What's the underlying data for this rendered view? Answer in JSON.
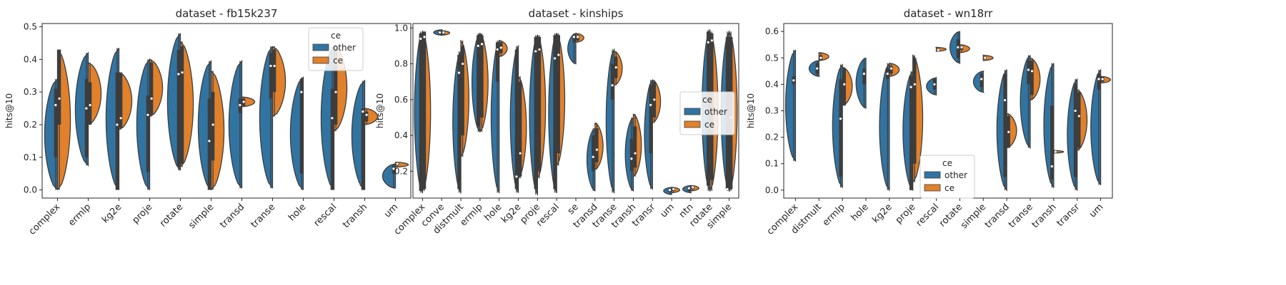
{
  "chart_data": [
    {
      "type": "violin",
      "title": "dataset - fb15k237",
      "xlabel": "",
      "ylabel": "hits@10",
      "ylim": [
        -0.025,
        0.51
      ],
      "yticks": [
        0.0,
        0.1,
        0.2,
        0.3,
        0.4,
        0.5
      ],
      "ytick_labels": [
        "0.0",
        "0.1",
        "0.2",
        "0.3",
        "0.4",
        "0.5"
      ],
      "legend": {
        "title": "ce",
        "entries": [
          "other",
          "ce"
        ],
        "placement": "top-right"
      },
      "categories": [
        {
          "label": "complex",
          "other": {
            "min": 0.0,
            "max": 0.34,
            "q1": 0.1,
            "median": 0.26,
            "q3": 0.31
          },
          "ce": {
            "min": 0.0,
            "max": 0.43,
            "q1": 0.2,
            "median": 0.28,
            "q3": 0.43
          }
        },
        {
          "label": "ermlp",
          "other": {
            "min": 0.075,
            "max": 0.42,
            "q1": 0.1,
            "median": 0.25,
            "q3": 0.34
          },
          "ce": {
            "min": 0.2,
            "max": 0.39,
            "q1": 0.2,
            "median": 0.26,
            "q3": 0.33
          }
        },
        {
          "label": "kg2e",
          "other": {
            "min": 0.0,
            "max": 0.435,
            "q1": 0.0,
            "median": 0.2,
            "q3": 0.36
          },
          "ce": {
            "min": 0.185,
            "max": 0.36,
            "q1": 0.19,
            "median": 0.22,
            "q3": 0.36
          }
        },
        {
          "label": "proje",
          "other": {
            "min": 0.0,
            "max": 0.4,
            "q1": 0.055,
            "median": 0.23,
            "q3": 0.29
          },
          "ce": {
            "min": 0.225,
            "max": 0.4,
            "q1": 0.23,
            "median": 0.28,
            "q3": 0.39
          }
        },
        {
          "label": "rotate",
          "other": {
            "min": 0.06,
            "max": 0.48,
            "q1": 0.07,
            "median": 0.355,
            "q3": 0.43
          },
          "ce": {
            "min": 0.07,
            "max": 0.455,
            "q1": 0.08,
            "median": 0.36,
            "q3": 0.44
          }
        },
        {
          "label": "simple",
          "other": {
            "min": 0.0,
            "max": 0.395,
            "q1": 0.0,
            "median": 0.15,
            "q3": 0.28
          },
          "ce": {
            "min": 0.0,
            "max": 0.365,
            "q1": 0.09,
            "median": 0.2,
            "q3": 0.3
          }
        },
        {
          "label": "transd",
          "other": {
            "min": 0.005,
            "max": 0.395,
            "q1": 0.235,
            "median": 0.26,
            "q3": 0.28
          },
          "ce": {
            "min": 0.255,
            "max": 0.285,
            "q1": 0.258,
            "median": 0.27,
            "q3": 0.28
          }
        },
        {
          "label": "transe",
          "other": {
            "min": 0.005,
            "max": 0.44,
            "q1": 0.28,
            "median": 0.38,
            "q3": 0.42
          },
          "ce": {
            "min": 0.225,
            "max": 0.44,
            "q1": 0.3,
            "median": 0.38,
            "q3": 0.43
          }
        },
        {
          "label": "hole",
          "other": {
            "min": 0.0,
            "max": 0.345,
            "q1": 0.05,
            "median": 0.3,
            "q3": 0.34
          },
          "ce": null
        },
        {
          "label": "rescal",
          "other": {
            "min": 0.0,
            "max": 0.44,
            "q1": 0.0,
            "median": 0.22,
            "q3": 0.31
          },
          "ce": {
            "min": 0.18,
            "max": 0.445,
            "q1": 0.2,
            "median": 0.3,
            "q3": 0.44
          }
        },
        {
          "label": "transh",
          "other": {
            "min": 0.0,
            "max": 0.335,
            "q1": 0.0,
            "median": 0.24,
            "q3": 0.25
          },
          "ce": {
            "min": 0.2,
            "max": 0.25,
            "q1": 0.21,
            "median": 0.23,
            "q3": 0.24
          }
        },
        {
          "label": "um",
          "other": {
            "min": 0.005,
            "max": 0.08,
            "q1": 0.05,
            "median": 0.065,
            "q3": 0.075
          },
          "ce": {
            "min": 0.07,
            "max": 0.085,
            "q1": 0.075,
            "median": 0.08,
            "q3": 0.083
          }
        }
      ]
    },
    {
      "type": "violin",
      "title": "dataset - kinships",
      "xlabel": "",
      "ylabel": "hits@10",
      "ylim": [
        0.05,
        1.025
      ],
      "yticks": [
        0.2,
        0.4,
        0.6,
        0.8,
        1.0
      ],
      "ytick_labels": [
        "0.2",
        "0.4",
        "0.6",
        "0.8",
        "1.0"
      ],
      "legend": {
        "title": "ce",
        "entries": [
          "other",
          "ce"
        ],
        "placement": "center-right"
      },
      "categories": [
        {
          "label": "complex",
          "other": {
            "min": 0.08,
            "max": 0.98,
            "q1": 0.09,
            "median": 0.94,
            "q3": 0.97
          },
          "ce": {
            "min": 0.09,
            "max": 0.98,
            "q1": 0.1,
            "median": 0.95,
            "q3": 0.98
          }
        },
        {
          "label": "conve",
          "other": {
            "min": 0.96,
            "max": 0.99,
            "q1": 0.965,
            "median": 0.975,
            "q3": 0.985
          },
          "ce": {
            "min": 0.96,
            "max": 0.985,
            "q1": 0.965,
            "median": 0.975,
            "q3": 0.98
          }
        },
        {
          "label": "distmult",
          "other": {
            "min": 0.08,
            "max": 0.87,
            "q1": 0.1,
            "median": 0.75,
            "q3": 0.85
          },
          "ce": {
            "min": 0.28,
            "max": 0.93,
            "q1": 0.4,
            "median": 0.8,
            "q3": 0.9
          }
        },
        {
          "label": "ermlp",
          "other": {
            "min": 0.42,
            "max": 0.97,
            "q1": 0.45,
            "median": 0.9,
            "q3": 0.96
          },
          "ce": {
            "min": 0.42,
            "max": 0.97,
            "q1": 0.5,
            "median": 0.91,
            "q3": 0.96
          }
        },
        {
          "label": "hole",
          "other": {
            "min": 0.08,
            "max": 0.93,
            "q1": 0.7,
            "median": 0.88,
            "q3": 0.92
          },
          "ce": {
            "min": 0.84,
            "max": 0.93,
            "q1": 0.86,
            "median": 0.89,
            "q3": 0.92
          }
        },
        {
          "label": "kg2e",
          "other": {
            "min": 0.08,
            "max": 0.9,
            "q1": 0.1,
            "median": 0.17,
            "q3": 0.88
          },
          "ce": {
            "min": 0.16,
            "max": 0.73,
            "q1": 0.17,
            "median": 0.3,
            "q3": 0.7
          }
        },
        {
          "label": "proje",
          "other": {
            "min": 0.07,
            "max": 0.96,
            "q1": 0.1,
            "median": 0.87,
            "q3": 0.95
          },
          "ce": {
            "min": 0.16,
            "max": 0.96,
            "q1": 0.2,
            "median": 0.88,
            "q3": 0.95
          }
        },
        {
          "label": "rescal",
          "other": {
            "min": 0.08,
            "max": 0.97,
            "q1": 0.1,
            "median": 0.83,
            "q3": 0.96
          },
          "ce": {
            "min": 0.23,
            "max": 0.97,
            "q1": 0.3,
            "median": 0.85,
            "q3": 0.96
          }
        },
        {
          "label": "se",
          "other": {
            "min": 0.8,
            "max": 0.97,
            "q1": 0.92,
            "median": 0.95,
            "q3": 0.96
          },
          "ce": {
            "min": 0.92,
            "max": 0.97,
            "q1": 0.93,
            "median": 0.95,
            "q3": 0.96
          }
        },
        {
          "label": "transd",
          "other": {
            "min": 0.09,
            "max": 0.44,
            "q1": 0.2,
            "median": 0.28,
            "q3": 0.4
          },
          "ce": {
            "min": 0.21,
            "max": 0.47,
            "q1": 0.25,
            "median": 0.32,
            "q3": 0.44
          }
        },
        {
          "label": "transe",
          "other": {
            "min": 0.08,
            "max": 0.88,
            "q1": 0.6,
            "median": 0.68,
            "q3": 0.8
          },
          "ce": {
            "min": 0.68,
            "max": 0.87,
            "q1": 0.72,
            "median": 0.78,
            "q3": 0.84
          }
        },
        {
          "label": "transh",
          "other": {
            "min": 0.09,
            "max": 0.5,
            "q1": 0.2,
            "median": 0.27,
            "q3": 0.38
          },
          "ce": {
            "min": 0.17,
            "max": 0.52,
            "q1": 0.22,
            "median": 0.3,
            "q3": 0.45
          }
        },
        {
          "label": "transr",
          "other": {
            "min": 0.1,
            "max": 0.71,
            "q1": 0.3,
            "median": 0.57,
            "q3": 0.68
          },
          "ce": {
            "min": 0.47,
            "max": 0.71,
            "q1": 0.5,
            "median": 0.6,
            "q3": 0.7
          }
        },
        {
          "label": "um",
          "other": {
            "min": 0.07,
            "max": 0.11,
            "q1": 0.085,
            "median": 0.095,
            "q3": 0.1
          },
          "ce": {
            "min": 0.08,
            "max": 0.11,
            "q1": 0.09,
            "median": 0.1,
            "q3": 0.105
          }
        },
        {
          "label": "ntn",
          "other": {
            "min": 0.08,
            "max": 0.12,
            "q1": 0.09,
            "median": 0.105,
            "q3": 0.11
          },
          "ce": {
            "min": 0.09,
            "max": 0.12,
            "q1": 0.1,
            "median": 0.11,
            "q3": 0.115
          }
        },
        {
          "label": "rotate",
          "other": {
            "min": 0.09,
            "max": 0.99,
            "q1": 0.12,
            "median": 0.92,
            "q3": 0.98
          },
          "ce": {
            "min": 0.09,
            "max": 0.98,
            "q1": 0.15,
            "median": 0.93,
            "q3": 0.97
          }
        },
        {
          "label": "simple",
          "other": {
            "min": 0.09,
            "max": 0.98,
            "q1": 0.1,
            "median": 0.1,
            "q3": 0.95
          },
          "ce": {
            "min": 0.09,
            "max": 0.98,
            "q1": 0.1,
            "median": 0.5,
            "q3": 0.95
          }
        }
      ]
    },
    {
      "type": "violin",
      "title": "dataset - wn18rr",
      "xlabel": "",
      "ylabel": "hits@10",
      "ylim": [
        -0.03,
        0.63
      ],
      "yticks": [
        0.0,
        0.1,
        0.2,
        0.3,
        0.4,
        0.5,
        0.6
      ],
      "ytick_labels": [
        "0.0",
        "0.1",
        "0.2",
        "0.3",
        "0.4",
        "0.5",
        "0.6"
      ],
      "legend": {
        "title": "ce",
        "entries": [
          "other",
          "ce"
        ],
        "placement": "bottom-center"
      },
      "categories": [
        {
          "label": "complex",
          "other": {
            "min": 0.11,
            "max": 0.53,
            "q1": 0.4,
            "median": 0.415,
            "q3": 0.43
          },
          "ce": null
        },
        {
          "label": "distmult",
          "other": {
            "min": 0.43,
            "max": 0.49,
            "q1": 0.44,
            "median": 0.46,
            "q3": 0.48
          },
          "ce": {
            "min": 0.49,
            "max": 0.52,
            "q1": 0.49,
            "median": 0.5,
            "q3": 0.51
          }
        },
        {
          "label": "ermlp",
          "other": {
            "min": 0.01,
            "max": 0.475,
            "q1": 0.05,
            "median": 0.27,
            "q3": 0.42
          },
          "ce": {
            "min": 0.32,
            "max": 0.465,
            "q1": 0.32,
            "median": 0.4,
            "q3": 0.46
          }
        },
        {
          "label": "hole",
          "other": {
            "min": 0.31,
            "max": 0.5,
            "q1": 0.4,
            "median": 0.44,
            "q3": 0.46
          },
          "ce": null
        },
        {
          "label": "kg2e",
          "other": {
            "min": 0.0,
            "max": 0.48,
            "q1": 0.42,
            "median": 0.44,
            "q3": 0.46
          },
          "ce": {
            "min": 0.43,
            "max": 0.48,
            "q1": 0.44,
            "median": 0.46,
            "q3": 0.47
          }
        },
        {
          "label": "proje",
          "other": {
            "min": 0.0,
            "max": 0.45,
            "q1": 0.0,
            "median": 0.39,
            "q3": 0.43
          },
          "ce": {
            "min": 0.03,
            "max": 0.51,
            "q1": 0.1,
            "median": 0.4,
            "q3": 0.5
          }
        },
        {
          "label": "rescal",
          "other": {
            "min": 0.36,
            "max": 0.425,
            "q1": 0.38,
            "median": 0.4,
            "q3": 0.42
          },
          "ce": {
            "min": 0.525,
            "max": 0.54,
            "q1": 0.53,
            "median": 0.53,
            "q3": 0.535
          }
        },
        {
          "label": "rotate",
          "other": {
            "min": 0.48,
            "max": 0.6,
            "q1": 0.5,
            "median": 0.54,
            "q3": 0.57
          },
          "ce": {
            "min": 0.52,
            "max": 0.55,
            "q1": 0.53,
            "median": 0.54,
            "q3": 0.545
          }
        },
        {
          "label": "simple",
          "other": {
            "min": 0.37,
            "max": 0.45,
            "q1": 0.39,
            "median": 0.42,
            "q3": 0.44
          },
          "ce": {
            "min": 0.49,
            "max": 0.51,
            "q1": 0.495,
            "median": 0.5,
            "q3": 0.505
          }
        },
        {
          "label": "transd",
          "other": {
            "min": 0.0,
            "max": 0.455,
            "q1": 0.05,
            "median": 0.34,
            "q3": 0.44
          },
          "ce": {
            "min": 0.16,
            "max": 0.29,
            "q1": 0.16,
            "median": 0.22,
            "q3": 0.28
          }
        },
        {
          "label": "transe",
          "other": {
            "min": 0.16,
            "max": 0.51,
            "q1": 0.4,
            "median": 0.455,
            "q3": 0.49
          },
          "ce": {
            "min": 0.34,
            "max": 0.5,
            "q1": 0.36,
            "median": 0.45,
            "q3": 0.49
          }
        },
        {
          "label": "transh",
          "other": {
            "min": 0.01,
            "max": 0.48,
            "q1": 0.04,
            "median": 0.09,
            "q3": 0.32
          },
          "ce": {
            "min": 0.14,
            "max": 0.15,
            "q1": 0.142,
            "median": 0.145,
            "q3": 0.148
          }
        },
        {
          "label": "transr",
          "other": {
            "min": 0.0,
            "max": 0.42,
            "q1": 0.05,
            "median": 0.3,
            "q3": 0.4
          },
          "ce": {
            "min": 0.15,
            "max": 0.38,
            "q1": 0.16,
            "median": 0.28,
            "q3": 0.37
          }
        },
        {
          "label": "um",
          "other": {
            "min": 0.02,
            "max": 0.455,
            "q1": 0.38,
            "median": 0.42,
            "q3": 0.44
          },
          "ce": {
            "min": 0.405,
            "max": 0.43,
            "q1": 0.41,
            "median": 0.42,
            "q3": 0.43
          }
        }
      ]
    }
  ],
  "colors": {
    "other": "#3274a1",
    "ce": "#e1812c",
    "edge": "#3d3d3d",
    "box": "#3d3d3d",
    "median": "#ffffff"
  }
}
